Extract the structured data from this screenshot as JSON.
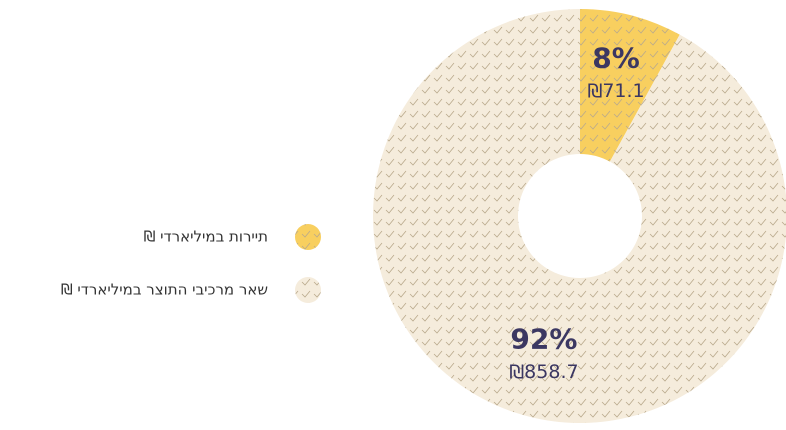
{
  "chart_data": {
    "type": "donut",
    "categories": [
      "תיירות במיליארדי ₪",
      "שאר מרכיבי התוצר במיליארדי ₪"
    ],
    "values": [
      8,
      92
    ],
    "value_labels": [
      "8%",
      "92%"
    ],
    "amounts": [
      71.1,
      858.7
    ],
    "amount_labels": [
      "₪71.1",
      "₪858.7"
    ],
    "colors": [
      "#f8cf5f",
      "#f5ecdc"
    ],
    "legend": "left"
  }
}
